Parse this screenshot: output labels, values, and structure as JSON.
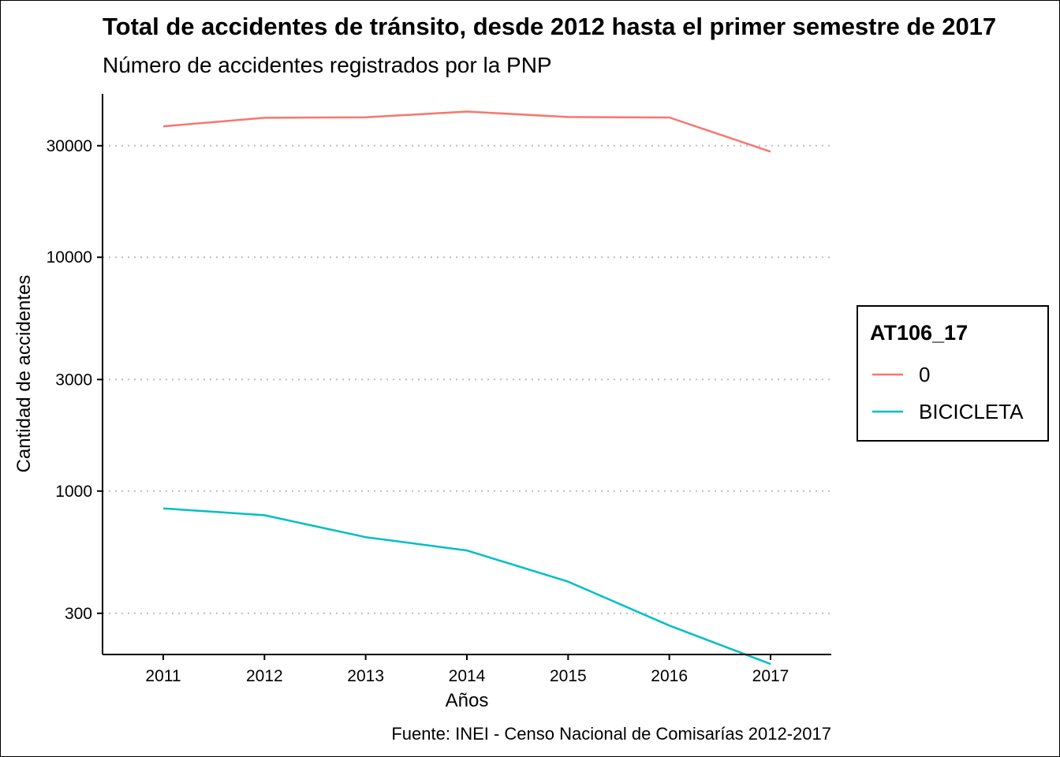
{
  "chart_data": {
    "type": "line",
    "title": "Total de accidentes de tránsito, desde 2012 hasta el primer semestre de 2017",
    "subtitle": "Número de accidentes registrados por la PNP",
    "xlabel": "Años",
    "ylabel": "Cantidad de accidentes",
    "caption": "Fuente: INEI - Censo Nacional de Comisarías 2012-2017",
    "x": [
      2011,
      2012,
      2013,
      2014,
      2015,
      2016,
      2017
    ],
    "xlim": [
      2010.4,
      2017.6
    ],
    "y_scale": "log10",
    "ylim": [
      200,
      50000
    ],
    "yticks": [
      300,
      1000,
      3000,
      10000,
      30000
    ],
    "ytick_labels": [
      "300",
      "1000",
      "3000",
      "10000",
      "30000"
    ],
    "grid": "horizontal dotted",
    "legend": {
      "title": "AT106_17",
      "position": "right"
    },
    "series": [
      {
        "name": "0",
        "color": "#F8766D",
        "values": [
          36300,
          39500,
          39700,
          42000,
          39800,
          39600,
          28300
        ]
      },
      {
        "name": "BICICLETA",
        "color": "#00BFC4",
        "values": [
          843,
          788,
          635,
          557,
          410,
          266,
          182
        ]
      }
    ]
  }
}
